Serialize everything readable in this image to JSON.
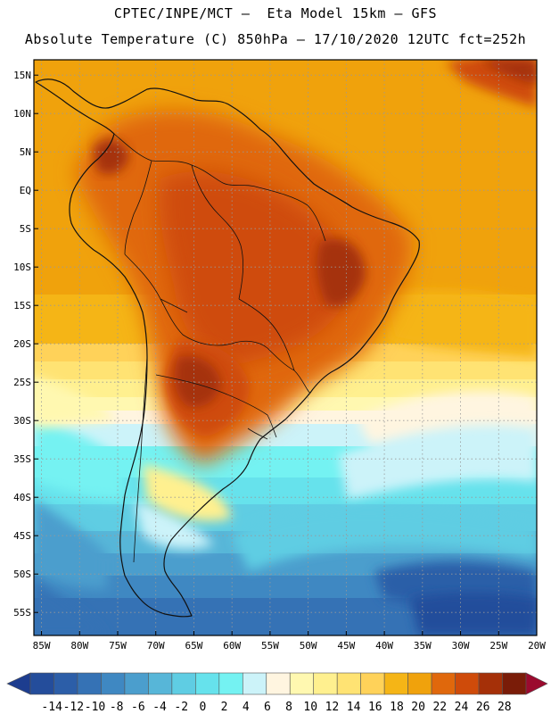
{
  "header": {
    "line1": "CPTEC/INPE/MCT –  Eta Model 15km – GFS",
    "line2": "Absolute Temperature (C) 850hPa – 17/10/2020 12UTC fct=252h"
  },
  "map": {
    "lon_range": [
      -86,
      -20
    ],
    "lat_range": [
      -58,
      17
    ],
    "lat_ticks": [
      "15N",
      "10N",
      "5N",
      "EQ",
      "5S",
      "10S",
      "15S",
      "20S",
      "25S",
      "30S",
      "35S",
      "40S",
      "45S",
      "50S",
      "55S"
    ],
    "lat_values": [
      15,
      10,
      5,
      0,
      -5,
      -10,
      -15,
      -20,
      -25,
      -30,
      -35,
      -40,
      -45,
      -50,
      -55
    ],
    "lon_ticks": [
      "85W",
      "80W",
      "75W",
      "70W",
      "65W",
      "60W",
      "55W",
      "50W",
      "45W",
      "40W",
      "35W",
      "30W",
      "25W",
      "20W"
    ],
    "lon_values": [
      -85,
      -80,
      -75,
      -70,
      -65,
      -60,
      -55,
      -50,
      -45,
      -40,
      -35,
      -30,
      -25,
      -20
    ]
  },
  "colorbar": {
    "labels": [
      "-14",
      "-12",
      "-10",
      "-8",
      "-6",
      "-4",
      "-2",
      "0",
      "2",
      "4",
      "6",
      "8",
      "10",
      "12",
      "14",
      "16",
      "18",
      "20",
      "22",
      "24",
      "26",
      "28"
    ],
    "colors": [
      "#1d3d8f",
      "#244d9b",
      "#2c5ea8",
      "#3572b5",
      "#3f88c2",
      "#4b9ecd",
      "#57b6d8",
      "#5fcde3",
      "#66e2ec",
      "#74f2f2",
      "#ccf3f9",
      "#fff5e0",
      "#fff8b0",
      "#fff08f",
      "#ffe373",
      "#ffd259",
      "#f5b516",
      "#f0a20c",
      "#e0680c",
      "#cf4b0a",
      "#a53008",
      "#7a1c08",
      "#9b0a2e"
    ]
  }
}
